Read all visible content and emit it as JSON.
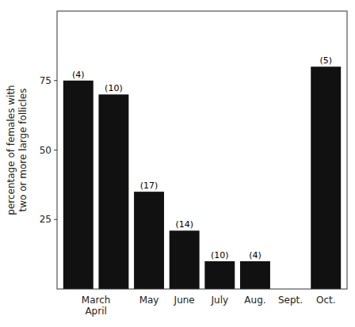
{
  "chart_data": {
    "type": "bar",
    "categories": [
      "March\nApril",
      null,
      "May",
      "June",
      "July",
      "Aug.",
      "Sept.",
      "Oct."
    ],
    "values": [
      75,
      70,
      35,
      21,
      10,
      10,
      0,
      80
    ],
    "annotations": [
      "(4)",
      "(10)",
      "(17)",
      "(14)",
      "(10)",
      "(4)",
      null,
      "(5)"
    ],
    "color": "#111111",
    "y_label": "percentage of females with\ntwo or more large follicles",
    "ylim": [
      0,
      100
    ],
    "yticks": [
      25,
      50,
      75
    ],
    "grid": false
  }
}
